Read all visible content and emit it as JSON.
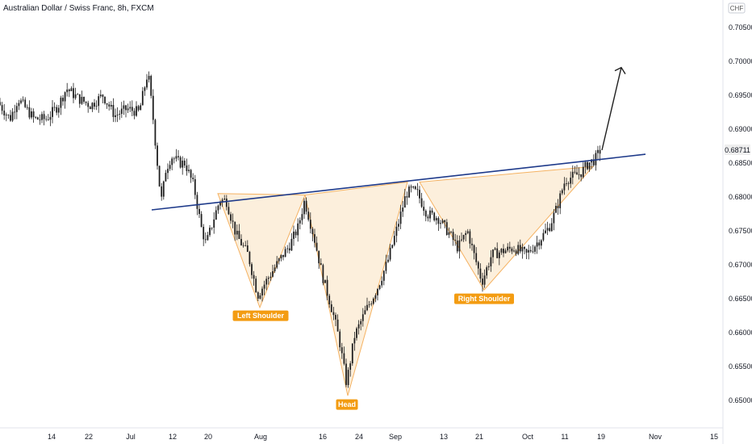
{
  "header": {
    "title": "Australian Dollar / Swiss Franc, 8h, FXCM",
    "currency": "CHF"
  },
  "price_tag": {
    "value": "0.68711"
  },
  "colors": {
    "candle": "#1f1f1f",
    "neckline": "#1e3a8a",
    "pattern_fill": "#fcefdc",
    "pattern_stroke": "#f5b262",
    "label_bg": "#f39c12",
    "arrow": "#1f1f1f"
  },
  "chart_data": {
    "type": "candlestick",
    "title": "Australian Dollar / Swiss Franc, 8h, FXCM",
    "ylim": [
      0.6455,
      0.7072
    ],
    "y_ticks": [
      "0.70500",
      "0.70000",
      "0.69500",
      "0.69000",
      "0.68500",
      "0.68000",
      "0.67500",
      "0.67000",
      "0.66500",
      "0.66000",
      "0.65500",
      "0.65000"
    ],
    "y_tick_values": [
      0.705,
      0.7,
      0.695,
      0.69,
      0.685,
      0.68,
      0.675,
      0.67,
      0.665,
      0.66,
      0.655,
      0.65
    ],
    "x_ticks": [
      "14",
      "22",
      "Jul",
      "12",
      "20",
      "Aug",
      "16",
      "24",
      "Sep",
      "13",
      "21",
      "Oct",
      "11",
      "19",
      "Nov",
      "15"
    ],
    "price_anchors": [
      [
        0,
        0.694
      ],
      [
        15,
        0.6915
      ],
      [
        25,
        0.6945
      ],
      [
        45,
        0.6915
      ],
      [
        60,
        0.6915
      ],
      [
        75,
        0.6935
      ],
      [
        85,
        0.696
      ],
      [
        100,
        0.6945
      ],
      [
        115,
        0.6935
      ],
      [
        130,
        0.695
      ],
      [
        145,
        0.692
      ],
      [
        160,
        0.693
      ],
      [
        175,
        0.6925
      ],
      [
        186,
        0.6985
      ],
      [
        192,
        0.692
      ],
      [
        200,
        0.682
      ],
      [
        203,
        0.6795
      ],
      [
        208,
        0.684
      ],
      [
        215,
        0.686
      ],
      [
        225,
        0.685
      ],
      [
        232,
        0.685
      ],
      [
        243,
        0.6815
      ],
      [
        252,
        0.6755
      ],
      [
        258,
        0.673
      ],
      [
        268,
        0.677
      ],
      [
        275,
        0.6795
      ],
      [
        283,
        0.6795
      ],
      [
        295,
        0.6745
      ],
      [
        310,
        0.6715
      ],
      [
        322,
        0.6655
      ],
      [
        332,
        0.6675
      ],
      [
        348,
        0.6705
      ],
      [
        362,
        0.673
      ],
      [
        372,
        0.6755
      ],
      [
        380,
        0.6795
      ],
      [
        392,
        0.674
      ],
      [
        402,
        0.6685
      ],
      [
        415,
        0.663
      ],
      [
        423,
        0.659
      ],
      [
        432,
        0.6525
      ],
      [
        442,
        0.6595
      ],
      [
        455,
        0.663
      ],
      [
        470,
        0.6665
      ],
      [
        483,
        0.6705
      ],
      [
        496,
        0.676
      ],
      [
        506,
        0.6805
      ],
      [
        513,
        0.681
      ],
      [
        520,
        0.6805
      ],
      [
        532,
        0.6775
      ],
      [
        545,
        0.677
      ],
      [
        560,
        0.6745
      ],
      [
        570,
        0.6725
      ],
      [
        582,
        0.675
      ],
      [
        590,
        0.6715
      ],
      [
        600,
        0.6675
      ],
      [
        612,
        0.6715
      ],
      [
        625,
        0.672
      ],
      [
        640,
        0.6725
      ],
      [
        655,
        0.6715
      ],
      [
        670,
        0.6735
      ],
      [
        683,
        0.6755
      ],
      [
        693,
        0.6785
      ],
      [
        703,
        0.6825
      ],
      [
        712,
        0.683
      ],
      [
        722,
        0.6835
      ],
      [
        732,
        0.685
      ],
      [
        740,
        0.6855
      ],
      [
        746,
        0.6868
      ]
    ],
    "neckline": {
      "from": [
        188,
        0.6781
      ],
      "to": [
        800,
        0.6863
      ]
    },
    "projection_arrow": {
      "from": [
        746,
        0.6869
      ],
      "to": [
        770,
        0.6991
      ]
    },
    "patterns": [
      {
        "name": "Left Shoulder",
        "points": [
          [
            270,
            0.6805
          ],
          [
            322,
            0.6637
          ],
          [
            378,
            0.6803
          ]
        ]
      },
      {
        "name": "Head",
        "points": [
          [
            378,
            0.6803
          ],
          [
            431,
            0.6507
          ],
          [
            505,
            0.6822
          ]
        ]
      },
      {
        "name": "Right Shoulder",
        "points": [
          [
            520,
            0.6822
          ],
          [
            600,
            0.6663
          ],
          [
            735,
            0.6845
          ]
        ]
      }
    ],
    "labels": [
      {
        "text": "Left Shoulder",
        "x": 323,
        "price": 0.6635
      },
      {
        "text": "Head",
        "x": 430,
        "price": 0.6504
      },
      {
        "text": "Right Shoulder",
        "x": 600,
        "price": 0.666
      }
    ],
    "grid": false,
    "legend": "none"
  }
}
